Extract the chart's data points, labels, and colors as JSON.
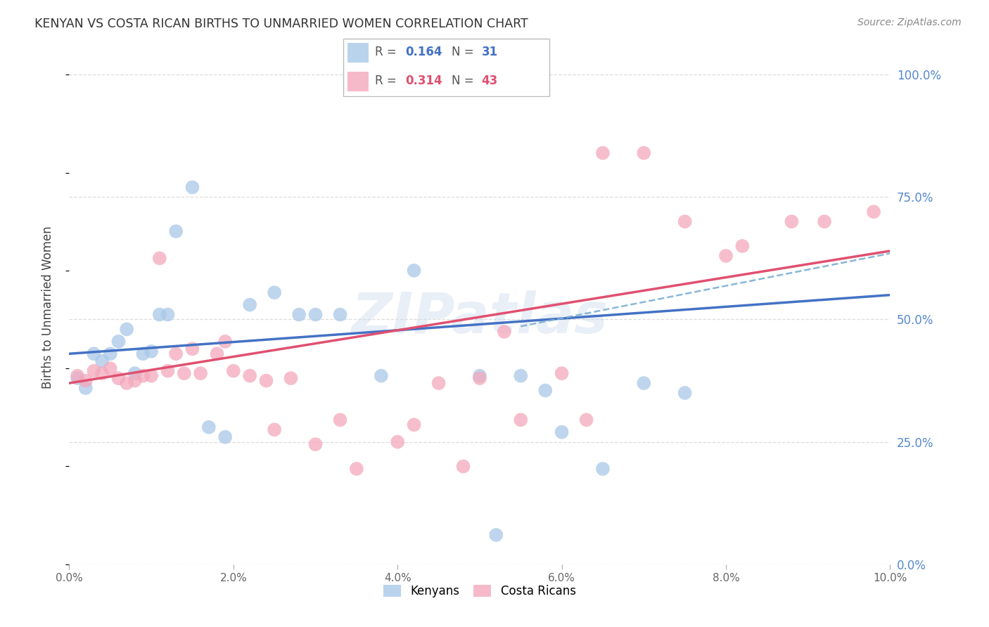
{
  "title": "KENYAN VS COSTA RICAN BIRTHS TO UNMARRIED WOMEN CORRELATION CHART",
  "source": "Source: ZipAtlas.com",
  "ylabel_left": "Births to Unmarried Women",
  "x_min": 0.0,
  "x_max": 0.1,
  "y_min": 0.0,
  "y_max": 1.05,
  "right_yticks": [
    0.0,
    0.25,
    0.5,
    0.75,
    1.0
  ],
  "right_yticklabels": [
    "0.0%",
    "25.0%",
    "50.0%",
    "75.0%",
    "100.0%"
  ],
  "bottom_xticks": [
    0.0,
    0.02,
    0.04,
    0.06,
    0.08,
    0.1
  ],
  "bottom_xticklabels": [
    "0.0%",
    "2.0%",
    "4.0%",
    "6.0%",
    "8.0%",
    "10.0%"
  ],
  "kenyan_R": 0.164,
  "kenyan_N": 31,
  "costarican_R": 0.314,
  "costarican_N": 43,
  "kenyan_color": "#a8c8e8",
  "costarican_color": "#f4a8bc",
  "kenyan_line_color": "#4472c4",
  "costarican_line_color": "#e05070",
  "dashed_line_color": "#7bafd4",
  "watermark": "ZIPatlas",
  "background_color": "#ffffff",
  "grid_color": "#dddddd",
  "right_tick_color": "#5588cc",
  "kenyan_x": [
    0.001,
    0.002,
    0.003,
    0.004,
    0.005,
    0.006,
    0.007,
    0.008,
    0.009,
    0.01,
    0.011,
    0.012,
    0.013,
    0.015,
    0.017,
    0.019,
    0.022,
    0.025,
    0.028,
    0.03,
    0.033,
    0.038,
    0.042,
    0.05,
    0.052,
    0.055,
    0.058,
    0.06,
    0.065,
    0.07,
    0.075
  ],
  "kenyan_y": [
    0.38,
    0.36,
    0.43,
    0.415,
    0.43,
    0.455,
    0.48,
    0.39,
    0.43,
    0.435,
    0.51,
    0.51,
    0.68,
    0.77,
    0.28,
    0.26,
    0.53,
    0.555,
    0.51,
    0.51,
    0.51,
    0.385,
    0.6,
    0.385,
    0.06,
    0.385,
    0.355,
    0.27,
    0.195,
    0.37,
    0.35
  ],
  "costarican_x": [
    0.001,
    0.002,
    0.003,
    0.004,
    0.005,
    0.006,
    0.007,
    0.008,
    0.009,
    0.01,
    0.011,
    0.012,
    0.013,
    0.014,
    0.015,
    0.016,
    0.018,
    0.019,
    0.02,
    0.022,
    0.024,
    0.025,
    0.027,
    0.03,
    0.033,
    0.035,
    0.04,
    0.042,
    0.045,
    0.048,
    0.05,
    0.053,
    0.055,
    0.06,
    0.063,
    0.065,
    0.07,
    0.075,
    0.08,
    0.082,
    0.088,
    0.092,
    0.098
  ],
  "costarican_y": [
    0.385,
    0.375,
    0.395,
    0.39,
    0.4,
    0.38,
    0.37,
    0.375,
    0.385,
    0.385,
    0.625,
    0.395,
    0.43,
    0.39,
    0.44,
    0.39,
    0.43,
    0.455,
    0.395,
    0.385,
    0.375,
    0.275,
    0.38,
    0.245,
    0.295,
    0.195,
    0.25,
    0.285,
    0.37,
    0.2,
    0.38,
    0.475,
    0.295,
    0.39,
    0.295,
    0.84,
    0.84,
    0.7,
    0.63,
    0.65,
    0.7,
    0.7,
    0.72
  ]
}
